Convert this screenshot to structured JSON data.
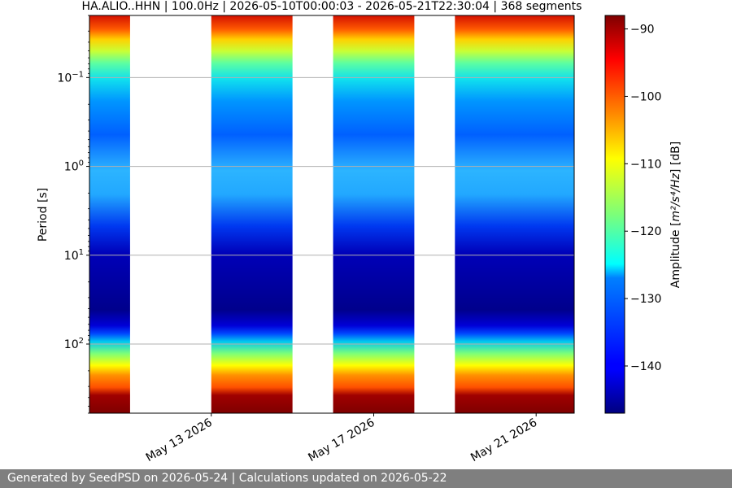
{
  "chart_data": {
    "type": "heatmap",
    "title": "HA.ALIO..HHN | 100.0Hz | 2026-05-10T00:00:03 - 2026-05-21T22:30:04 | 368 segments",
    "xlabel": "",
    "ylabel": "Period [s]",
    "x_range": [
      "2026-05-10T00:00:03",
      "2026-05-21T22:30:04"
    ],
    "x_ticks": [
      "May 13 2026",
      "May 17 2026",
      "May 21 2026"
    ],
    "y_scale": "log",
    "y_inverted": true,
    "y_ticks": [
      {
        "base": "10",
        "exp": "−1"
      },
      {
        "base": "10",
        "exp": "0"
      },
      {
        "base": "10",
        "exp": "1"
      },
      {
        "base": "10",
        "exp": "2"
      }
    ],
    "y_range": [
      0.02,
      600
    ],
    "data_spans": [
      {
        "start": "2026-05-10",
        "end": "2026-05-11"
      },
      {
        "start": "2026-05-13",
        "end": "2026-05-15"
      },
      {
        "start": "2026-05-16",
        "end": "2026-05-18"
      },
      {
        "start": "2026-05-19",
        "end": "2026-05-21T22:30"
      }
    ],
    "colorbar": {
      "label_prefix": "Amplitude [",
      "label_math": "m²/s⁴/Hz",
      "label_suffix": "] [dB]",
      "min": -147,
      "max": -88,
      "ticks": [
        "−90",
        "−100",
        "−110",
        "−120",
        "−130",
        "−140"
      ],
      "colormap": "jet"
    },
    "grid": true
  },
  "footer": {
    "text": "Generated by SeedPSD on 2026-05-24 | Calculations updated on 2026-05-22"
  }
}
